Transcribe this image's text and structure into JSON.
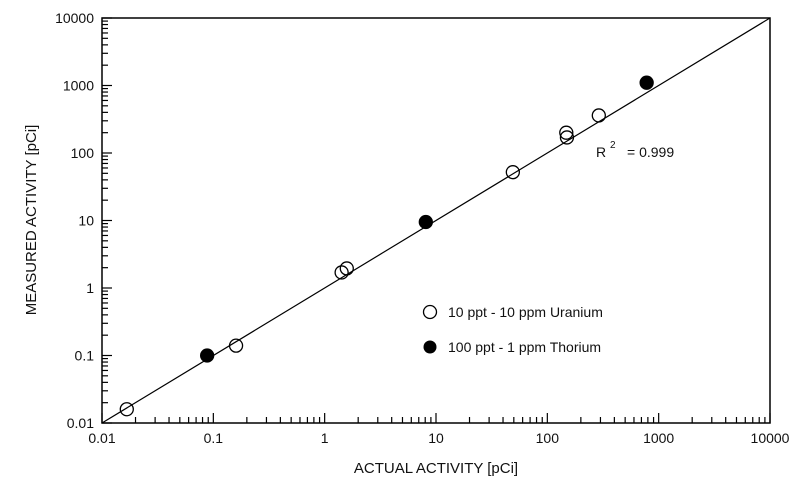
{
  "chart_data": {
    "type": "scatter",
    "xlabel": "ACTUAL ACTIVITY [pCi]",
    "ylabel": "MEASURED ACTIVITY [pCi]",
    "xscale": "log",
    "yscale": "log",
    "xlim": [
      0.01,
      10000
    ],
    "ylim": [
      0.01,
      10000
    ],
    "xticks": [
      "0.01",
      "0.1",
      "1",
      "10",
      "100",
      "1000",
      "10000"
    ],
    "yticks": [
      "0.01",
      "0.1",
      "1",
      "10",
      "100",
      "1000",
      "10000"
    ],
    "grid": false,
    "legend_position": "center-right",
    "annotation": {
      "r2_label": "R",
      "r2_sup": "2",
      "r2_value": "= 0.999"
    },
    "fit_line": {
      "x": [
        0.01,
        10000
      ],
      "y": [
        0.01,
        10000
      ]
    },
    "series": [
      {
        "name": "10 ppt - 10 ppm Uranium",
        "marker": "open-circle",
        "x": [
          0.0167,
          0.16,
          1.42,
          1.58,
          49,
          148,
          150,
          290
        ],
        "y": [
          0.016,
          0.14,
          1.7,
          1.95,
          52,
          200,
          170,
          360
        ]
      },
      {
        "name": "100 ppt - 1 ppm Thorium",
        "marker": "filled-circle",
        "x": [
          0.088,
          8.1,
          780
        ],
        "y": [
          0.1,
          9.5,
          1100
        ]
      }
    ],
    "colors": {
      "ink": "#000000"
    }
  }
}
